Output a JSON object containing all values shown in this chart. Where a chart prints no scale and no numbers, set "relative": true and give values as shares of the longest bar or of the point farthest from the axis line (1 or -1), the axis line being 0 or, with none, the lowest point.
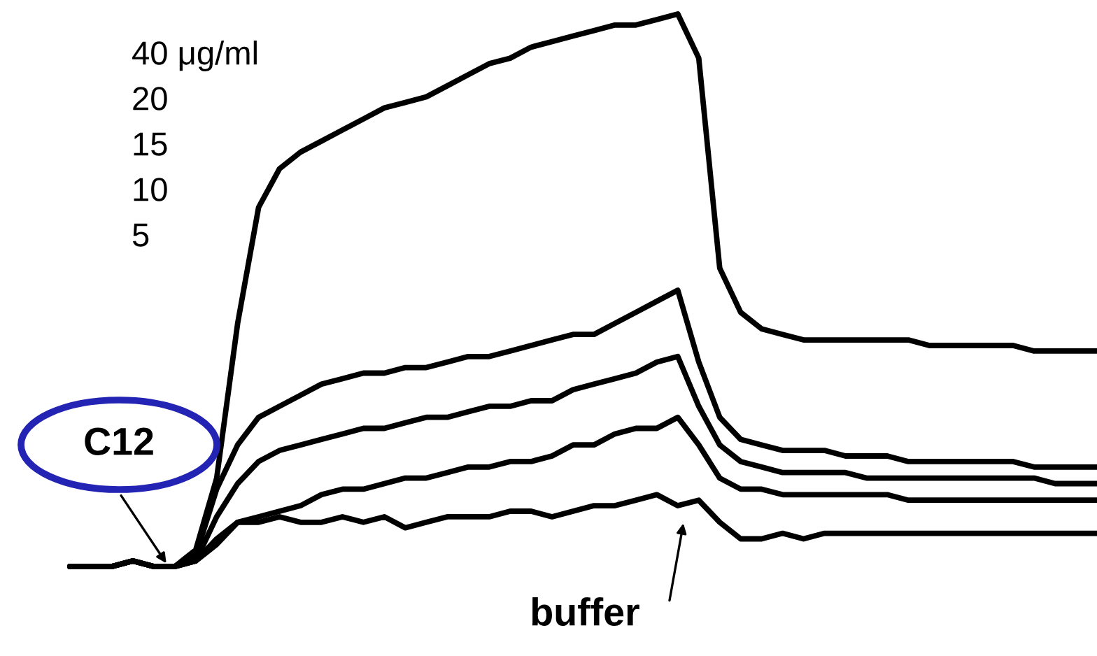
{
  "chart_data": {
    "type": "line",
    "relative": true,
    "grid": false,
    "marker": "none",
    "line_style": "solid",
    "categories": [
      null,
      null,
      null,
      null,
      null,
      null,
      null,
      null,
      null,
      null,
      null,
      null,
      null,
      null,
      null,
      null,
      null,
      null,
      null,
      null,
      null,
      null,
      null,
      null,
      null,
      null,
      null,
      null,
      null,
      null,
      null,
      null,
      null,
      null,
      null,
      null,
      null,
      null,
      null,
      null,
      null,
      null,
      null,
      null,
      null,
      null,
      null,
      null,
      null,
      null
    ],
    "series": [
      {
        "color": "#000000",
        "values": [
          0,
          0,
          0,
          0.01,
          0,
          0,
          0.03,
          0.16,
          0.44,
          0.65,
          0.72,
          0.75,
          0.77,
          0.79,
          0.81,
          0.83,
          0.84,
          0.85,
          0.87,
          0.89,
          0.91,
          0.92,
          0.94,
          0.95,
          0.96,
          0.97,
          0.98,
          0.98,
          0.99,
          1,
          0.92,
          0.54,
          0.46,
          0.43,
          0.42,
          0.41,
          0.41,
          0.41,
          0.41,
          0.41,
          0.41,
          0.4,
          0.4,
          0.4,
          0.4,
          0.4,
          0.39,
          0.39,
          0.39,
          0.39
        ]
      },
      {
        "color": "#000000",
        "values": [
          0,
          0,
          0,
          0.01,
          0,
          0,
          0.02,
          0.14,
          0.22,
          0.27,
          0.29,
          0.31,
          0.33,
          0.34,
          0.35,
          0.35,
          0.36,
          0.36,
          0.37,
          0.38,
          0.38,
          0.39,
          0.4,
          0.41,
          0.42,
          0.42,
          0.44,
          0.46,
          0.48,
          0.5,
          0.37,
          0.27,
          0.23,
          0.22,
          0.21,
          0.21,
          0.21,
          0.2,
          0.2,
          0.2,
          0.19,
          0.19,
          0.19,
          0.19,
          0.19,
          0.19,
          0.18,
          0.18,
          0.18,
          0.18
        ]
      },
      {
        "color": "#000000",
        "values": [
          0,
          0,
          0,
          0.01,
          0,
          0,
          0.01,
          0.09,
          0.15,
          0.19,
          0.21,
          0.22,
          0.23,
          0.24,
          0.25,
          0.25,
          0.26,
          0.27,
          0.27,
          0.28,
          0.29,
          0.29,
          0.3,
          0.3,
          0.32,
          0.33,
          0.34,
          0.35,
          0.37,
          0.38,
          0.29,
          0.22,
          0.19,
          0.18,
          0.17,
          0.17,
          0.17,
          0.17,
          0.16,
          0.16,
          0.16,
          0.16,
          0.16,
          0.16,
          0.16,
          0.16,
          0.16,
          0.15,
          0.15,
          0.15
        ]
      },
      {
        "color": "#000000",
        "values": [
          0,
          0,
          0,
          0.01,
          0,
          0,
          0.01,
          0.05,
          0.08,
          0.09,
          0.1,
          0.11,
          0.13,
          0.14,
          0.14,
          0.15,
          0.16,
          0.16,
          0.17,
          0.18,
          0.18,
          0.19,
          0.19,
          0.2,
          0.22,
          0.22,
          0.24,
          0.25,
          0.25,
          0.27,
          0.22,
          0.16,
          0.14,
          0.14,
          0.13,
          0.13,
          0.13,
          0.13,
          0.13,
          0.13,
          0.12,
          0.12,
          0.12,
          0.12,
          0.12,
          0.12,
          0.12,
          0.12,
          0.12,
          0.12
        ]
      },
      {
        "color": "#000000",
        "values": [
          0,
          0,
          0,
          0.01,
          0,
          0,
          0.01,
          0.04,
          0.08,
          0.08,
          0.09,
          0.08,
          0.08,
          0.09,
          0.08,
          0.09,
          0.07,
          0.08,
          0.09,
          0.09,
          0.09,
          0.1,
          0.1,
          0.09,
          0.1,
          0.11,
          0.11,
          0.12,
          0.13,
          0.11,
          0.12,
          0.08,
          0.05,
          0.05,
          0.06,
          0.05,
          0.06,
          0.06,
          0.06,
          0.06,
          0.06,
          0.06,
          0.06,
          0.06,
          0.06,
          0.06,
          0.06,
          0.06,
          0.06,
          0.06
        ]
      }
    ],
    "annotations": [
      "C12",
      "buffer",
      "40 μg/ml",
      "20",
      "15",
      "10",
      "5"
    ]
  }
}
